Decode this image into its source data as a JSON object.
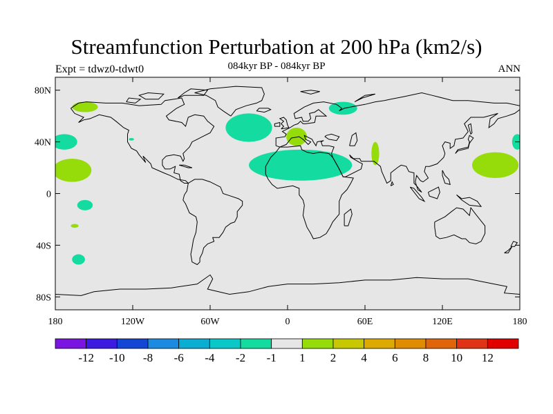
{
  "title": "Streamfunction Perturbation at 200 hPa (km2/s)",
  "subtitle": "084kyr BP - 084kyr BP",
  "left_label": "Expt = tdwz0-tdwt0",
  "right_label": "ANN",
  "map": {
    "background": "#e6e6e6",
    "lat_ticks": [
      {
        "value": 80,
        "label": "80N"
      },
      {
        "value": 40,
        "label": "40N"
      },
      {
        "value": 0,
        "label": "0"
      },
      {
        "value": -40,
        "label": "40S"
      },
      {
        "value": -80,
        "label": "80S"
      }
    ],
    "lon_ticks": [
      {
        "value": -180,
        "label": "180"
      },
      {
        "value": -120,
        "label": "120W"
      },
      {
        "value": -60,
        "label": "60W"
      },
      {
        "value": 0,
        "label": "0"
      },
      {
        "value": 60,
        "label": "60E"
      },
      {
        "value": 120,
        "label": "120E"
      },
      {
        "value": 180,
        "label": "180"
      }
    ]
  },
  "colorbar": {
    "colors": [
      "#7a14e0",
      "#3c1ae0",
      "#1446d6",
      "#1a8be0",
      "#0aaed2",
      "#0ac8c8",
      "#14dca0",
      "#e6e6e6",
      "#96dc0a",
      "#c8c800",
      "#dcaa00",
      "#e08c00",
      "#e0640a",
      "#e03214",
      "#e00000"
    ],
    "labels": [
      "-12",
      "-10",
      "-8",
      "-6",
      "-4",
      "-2",
      "-1",
      "1",
      "2",
      "4",
      "6",
      "8",
      "10",
      "12"
    ]
  },
  "chart_data": {
    "type": "heatmap",
    "title": "Streamfunction Perturbation at 200 hPa (km2/s)",
    "subtitle": "084kyr BP - 084kyr BP",
    "xlabel": "",
    "ylabel": "",
    "xlim": [
      -180,
      180
    ],
    "ylim": [
      -90,
      90
    ],
    "contour_levels": [
      -12,
      -10,
      -8,
      -6,
      -4,
      -2,
      -1,
      1,
      2,
      4,
      6,
      8,
      10,
      12
    ],
    "features": [
      {
        "label": "-2 to -1",
        "lon": -30,
        "lat": 51,
        "rx": 18,
        "ry": 11
      },
      {
        "label": "-2 to -1",
        "lon": 10,
        "lat": 22,
        "rx": 40,
        "ry": 12
      },
      {
        "label": "-2 to -1",
        "lon": 43,
        "lat": 66,
        "rx": 11,
        "ry": 5
      },
      {
        "label": "-2 to -1",
        "lon": -173,
        "lat": 40,
        "rx": 10,
        "ry": 6
      },
      {
        "label": "-2 to -1",
        "lon": -157,
        "lat": -9,
        "rx": 6,
        "ry": 4
      },
      {
        "label": "-2 to -1",
        "lon": -162,
        "lat": -51,
        "rx": 5,
        "ry": 4
      },
      {
        "label": "-2 to -1",
        "lon": 178,
        "lat": 40,
        "rx": 4,
        "ry": 6
      },
      {
        "label": "-2 to -1",
        "lon": -121,
        "lat": 42,
        "rx": 2,
        "ry": 1
      },
      {
        "label": "1 to 2",
        "lon": -167,
        "lat": 18,
        "rx": 15,
        "ry": 9
      },
      {
        "label": "1 to 2",
        "lon": -157,
        "lat": 67,
        "rx": 10,
        "ry": 4
      },
      {
        "label": "1 to 2",
        "lon": 7,
        "lat": 44,
        "rx": 8,
        "ry": 7
      },
      {
        "label": "1 to 2",
        "lon": 68,
        "lat": 31,
        "rx": 3,
        "ry": 9
      },
      {
        "label": "1 to 2",
        "lon": 161,
        "lat": 22,
        "rx": 18,
        "ry": 10
      },
      {
        "label": "1 to 2",
        "lon": -165,
        "lat": -25,
        "rx": 3,
        "ry": 1.5
      }
    ]
  }
}
